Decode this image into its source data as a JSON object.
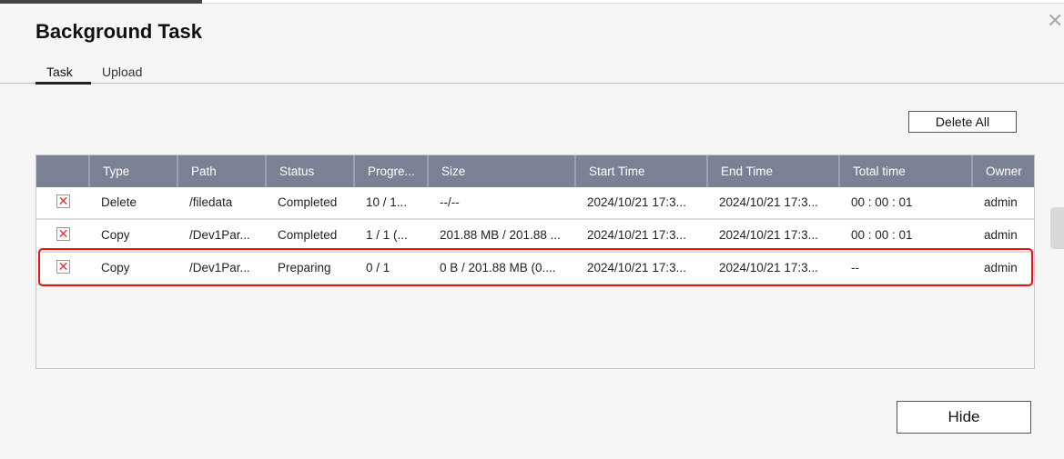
{
  "dialog": {
    "title": "Background Task",
    "close_icon": "close-icon"
  },
  "tabs": [
    {
      "label": "Task",
      "active": true
    },
    {
      "label": "Upload",
      "active": false
    }
  ],
  "buttons": {
    "delete_all": "Delete All",
    "hide": "Hide"
  },
  "table": {
    "columns": [
      "",
      "Type",
      "Path",
      "Status",
      "Progre...",
      "Size",
      "Start Time",
      "End Time",
      "Total time",
      "Owner"
    ],
    "rows": [
      {
        "type": "Delete",
        "path": "/filedata",
        "status": "Completed",
        "progress": "10 / 1...",
        "size": "--/--",
        "start": "2024/10/21 17:3...",
        "end": "2024/10/21 17:3...",
        "total": "00 : 00 : 01",
        "owner": "admin"
      },
      {
        "type": "Copy",
        "path": "/Dev1Par...",
        "status": "Completed",
        "progress": "1 / 1 (...",
        "size": "201.88 MB / 201.88 ...",
        "start": "2024/10/21 17:3...",
        "end": "2024/10/21 17:3...",
        "total": "00 : 00 : 01",
        "owner": "admin"
      },
      {
        "type": "Copy",
        "path": "/Dev1Par...",
        "status": "Preparing",
        "progress": "0 / 1",
        "size": "0 B / 201.88 MB  (0....",
        "start": "2024/10/21 17:3...",
        "end": "2024/10/21 17:3...",
        "total": "--",
        "owner": "admin",
        "highlighted": true
      }
    ]
  },
  "colors": {
    "header": "#7b8194",
    "highlight": "#e11111"
  }
}
